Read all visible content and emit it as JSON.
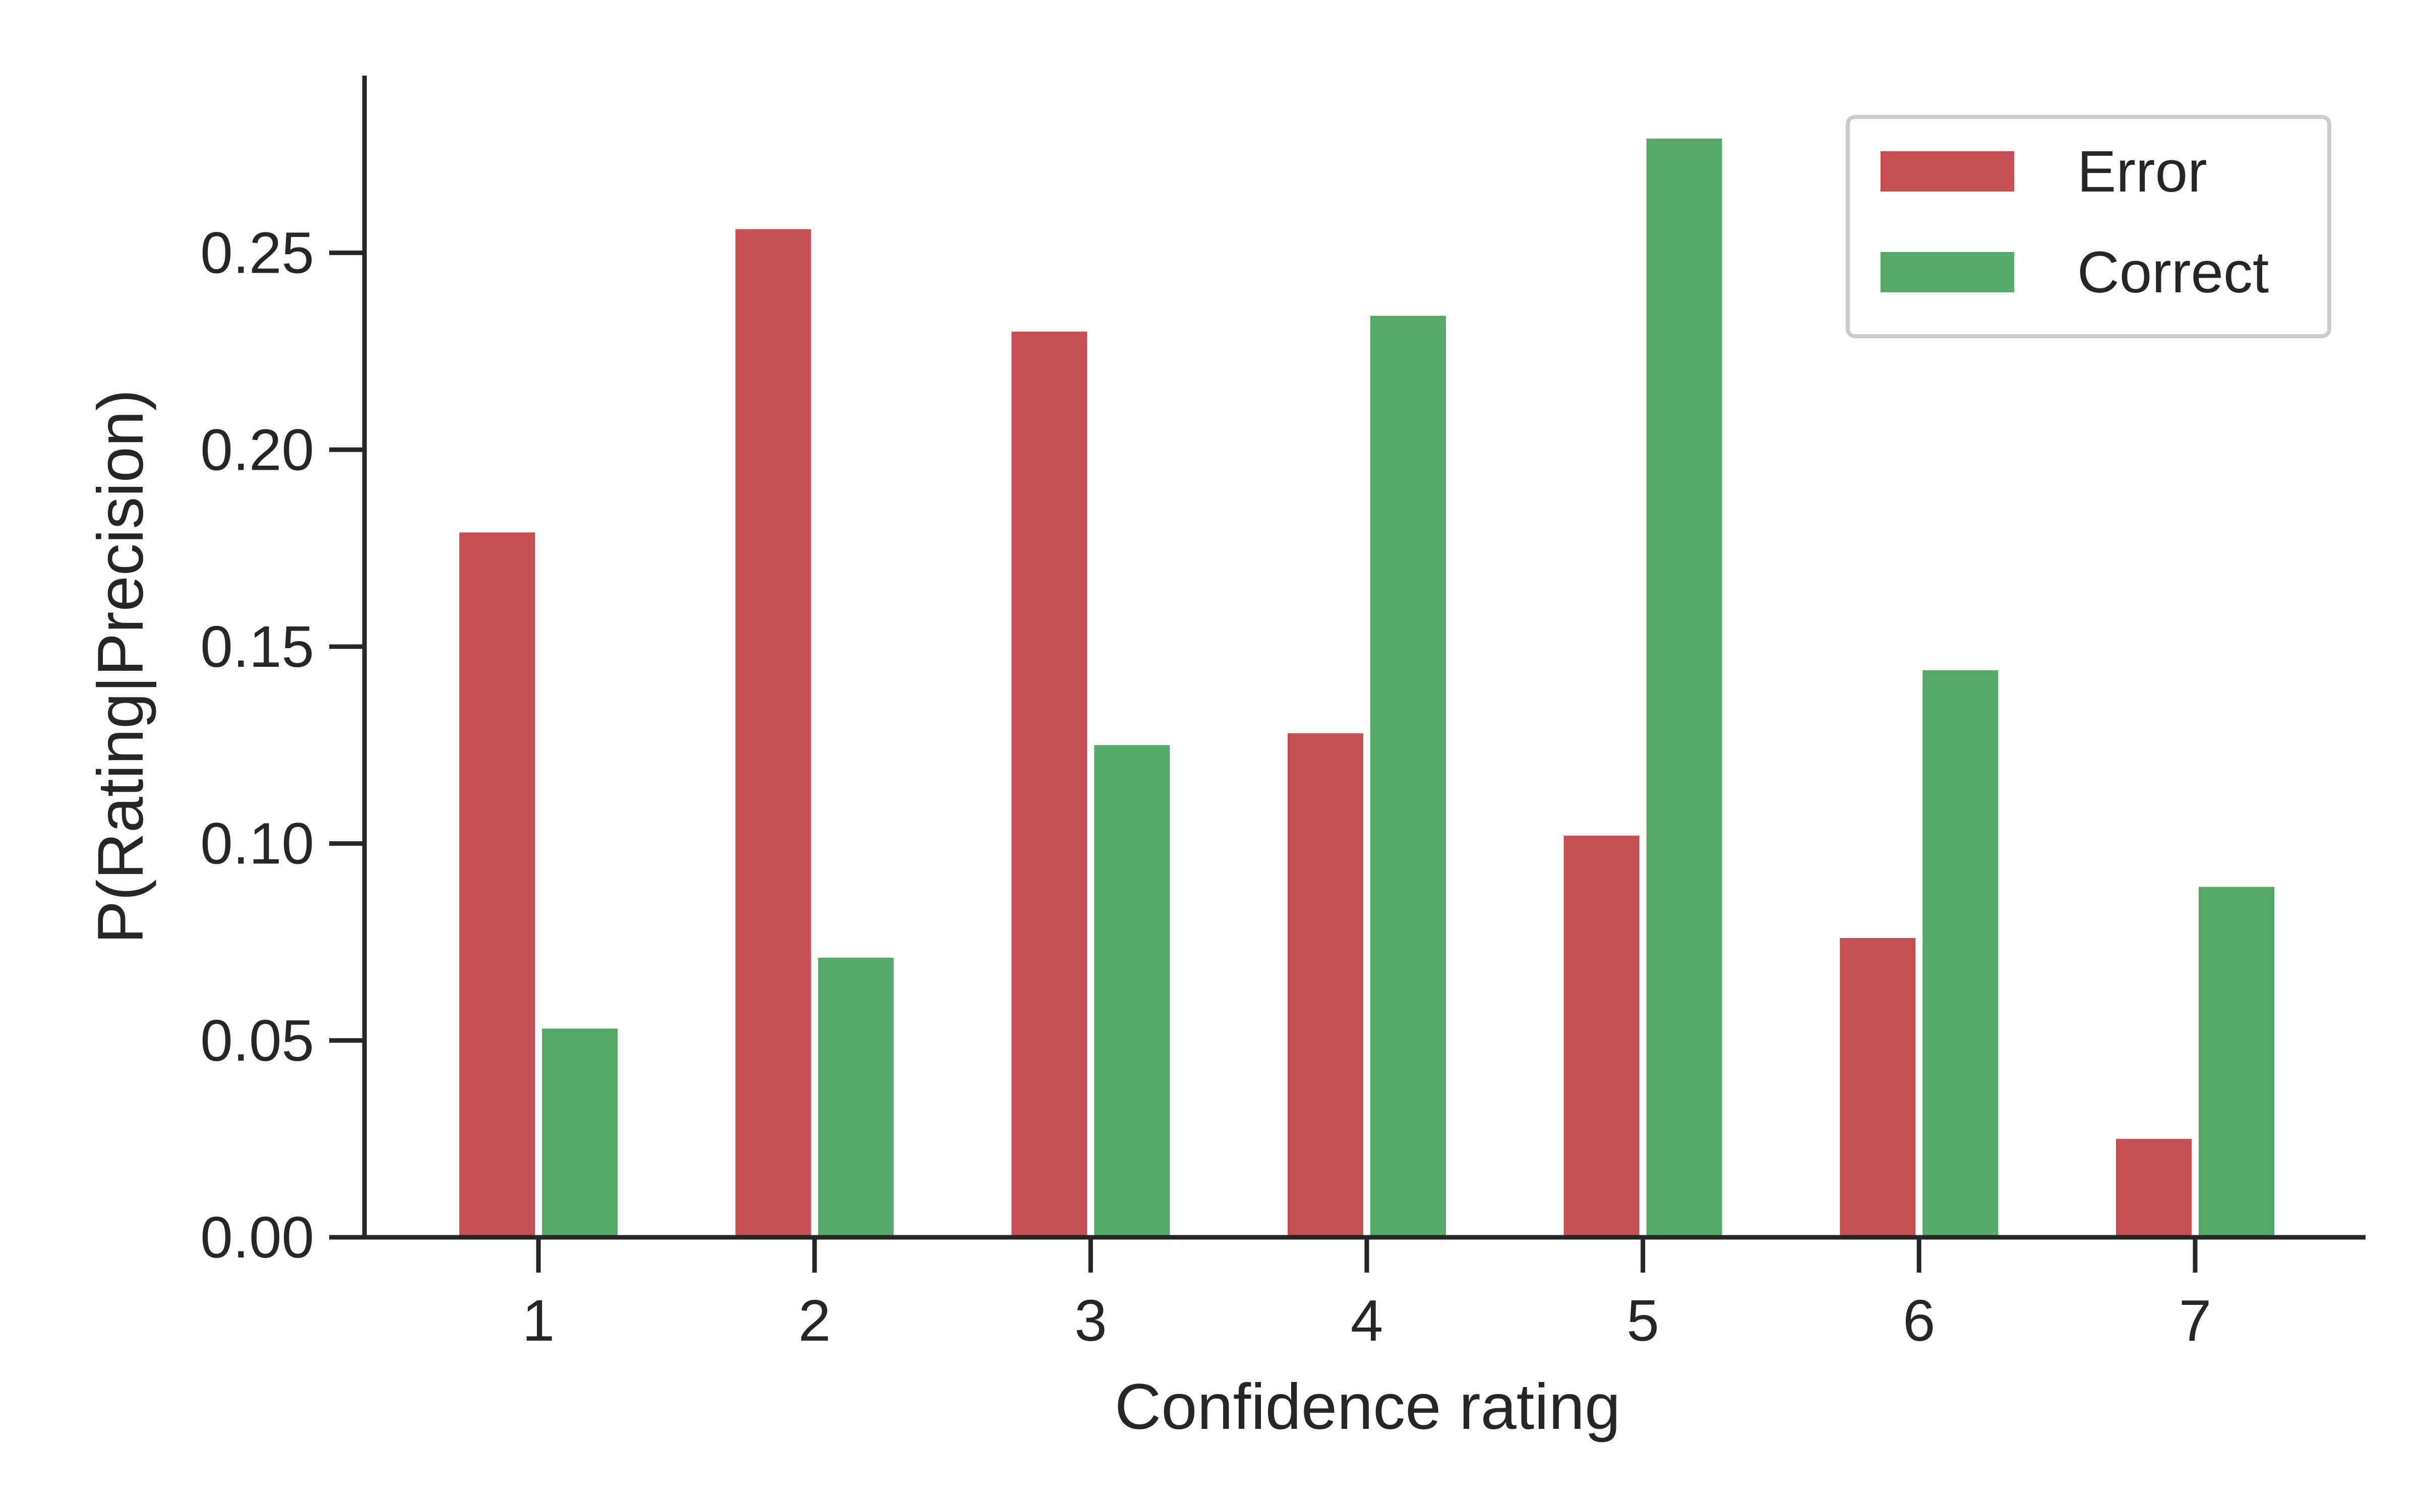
{
  "chart_data": {
    "type": "bar",
    "title": "",
    "xlabel": "Confidence rating",
    "ylabel": "P(Rating|Precision)",
    "categories": [
      "1",
      "2",
      "3",
      "4",
      "5",
      "6",
      "7"
    ],
    "series": [
      {
        "name": "Error",
        "color": "#c44e52",
        "values": [
          0.179,
          0.256,
          0.23,
          0.128,
          0.102,
          0.076,
          0.025
        ]
      },
      {
        "name": "Correct",
        "color": "#55a868",
        "values": [
          0.053,
          0.071,
          0.125,
          0.234,
          0.279,
          0.144,
          0.089
        ]
      }
    ],
    "ylim": [
      0,
      0.295
    ],
    "yticks": [
      0.0,
      0.05,
      0.1,
      0.15,
      0.2,
      0.25
    ],
    "ytick_labels": [
      "0.00",
      "0.05",
      "0.10",
      "0.15",
      "0.20",
      "0.25"
    ],
    "legend": {
      "position": "top-right"
    },
    "grid": false
  }
}
